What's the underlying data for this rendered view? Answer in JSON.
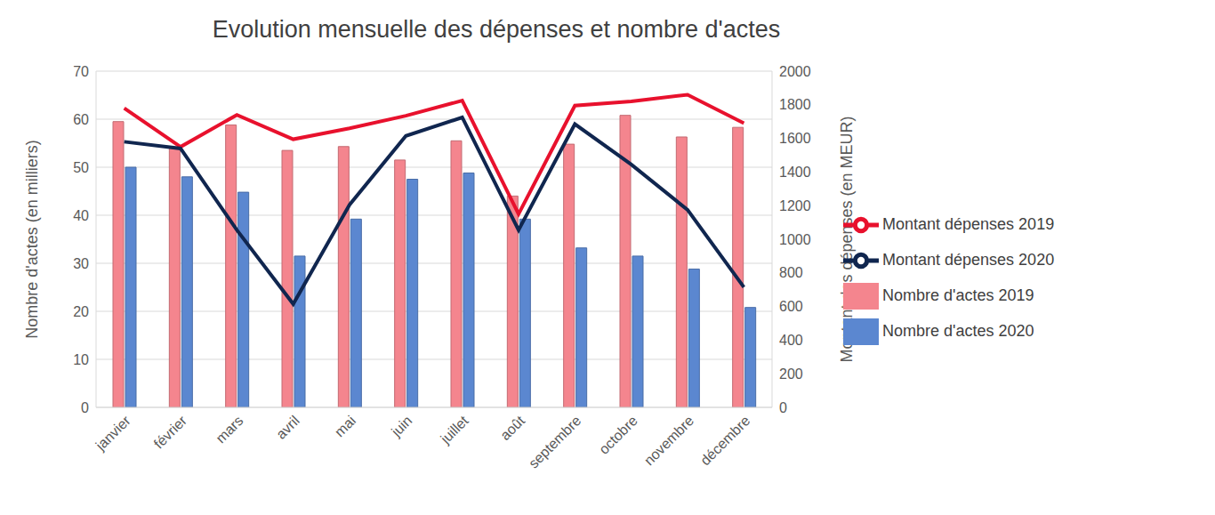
{
  "chart_data": {
    "type": "bar",
    "title": "Evolution mensuelle des dépenses et nombre d'actes",
    "y_label": "Nombre d'actes (en milliers)",
    "y2_label": "Montant des dépenses (en MEUR)",
    "categories": [
      "janvier",
      "février",
      "mars",
      "avril",
      "mai",
      "juin",
      "juillet",
      "août",
      "septembre",
      "octobre",
      "novembre",
      "décembre"
    ],
    "series": [
      {
        "name": "Nombre d'actes 2019",
        "type": "bar",
        "color": "#f4858e",
        "values": [
          59.5,
          54,
          58.8,
          53.5,
          54.3,
          51.5,
          55.5,
          44,
          54.8,
          60.8,
          56.3,
          58.3
        ]
      },
      {
        "name": "Nombre d'actes 2020",
        "type": "bar",
        "color": "#5b87d0",
        "values": [
          50,
          48,
          44.8,
          31.5,
          39.2,
          47.5,
          48.8,
          39.2,
          33.2,
          31.5,
          28.8,
          20.8
        ]
      },
      {
        "name": "Montant dépenses 2019",
        "type": "line",
        "axis": "y2",
        "color": "#e8112d",
        "values": [
          1780,
          1550,
          1740,
          1595,
          1660,
          1735,
          1825,
          1150,
          1795,
          1820,
          1860,
          1690
        ]
      },
      {
        "name": "Montant dépenses 2020",
        "type": "line",
        "axis": "y2",
        "color": "#10264f",
        "values": [
          1580,
          1540,
          1055,
          615,
          1205,
          1615,
          1725,
          1055,
          1685,
          1445,
          1175,
          715
        ]
      }
    ],
    "ylim": [
      0,
      70
    ],
    "yticks": [
      0,
      10,
      20,
      30,
      40,
      50,
      60,
      70
    ],
    "y2lim": [
      0,
      2000
    ],
    "y2ticks": [
      0,
      200,
      400,
      600,
      800,
      1000,
      1200,
      1400,
      1600,
      1800,
      2000
    ],
    "grid": true,
    "legend": "right"
  }
}
